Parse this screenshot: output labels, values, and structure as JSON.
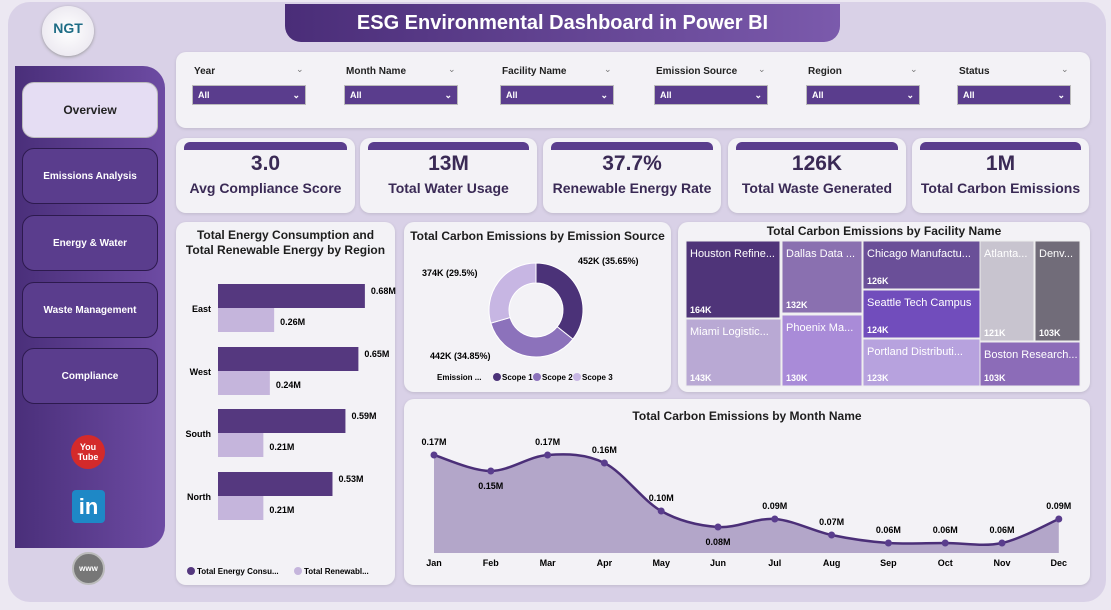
{
  "header": {
    "title": "ESG Environmental Dashboard in Power BI",
    "logo_text": "NGT"
  },
  "sidebar": {
    "items": [
      {
        "label": "Overview",
        "active": true
      },
      {
        "label": "Emissions Analysis"
      },
      {
        "label": "Energy & Water"
      },
      {
        "label": "Waste Management"
      },
      {
        "label": "Compliance"
      }
    ],
    "social": [
      "youtube-icon",
      "linkedin-icon",
      "website-icon"
    ]
  },
  "filters": [
    {
      "label": "Year",
      "value": "All"
    },
    {
      "label": "Month Name",
      "value": "All"
    },
    {
      "label": "Facility Name",
      "value": "All"
    },
    {
      "label": "Emission Source",
      "value": "All"
    },
    {
      "label": "Region",
      "value": "All"
    },
    {
      "label": "Status",
      "value": "All"
    }
  ],
  "kpis": [
    {
      "value": "3.0",
      "label": "Avg Compliance Score"
    },
    {
      "value": "13M",
      "label": "Total Water Usage"
    },
    {
      "value": "37.7%",
      "label": "Renewable Energy Rate"
    },
    {
      "value": "126K",
      "label": "Total Waste Generated"
    },
    {
      "value": "1M",
      "label": "Total Carbon Emissions"
    }
  ],
  "colors": {
    "primary": "#5a3d8d",
    "dark": "#4b3278",
    "light": "#c7b6e3"
  },
  "chart_data": [
    {
      "type": "bar",
      "orientation": "horizontal",
      "title": "Total Energy Consumption and Total Renewable Energy by Region",
      "categories": [
        "East",
        "West",
        "South",
        "North"
      ],
      "series": [
        {
          "name": "Total Energy Consu...",
          "values": [
            0.68,
            0.65,
            0.59,
            0.53
          ],
          "labels": [
            "0.68M",
            "0.65M",
            "0.59M",
            "0.53M"
          ],
          "color": "#55387f"
        },
        {
          "name": "Total Renewabl...",
          "values": [
            0.26,
            0.24,
            0.21,
            0.21
          ],
          "labels": [
            "0.26M",
            "0.24M",
            "0.21M",
            "0.21M"
          ],
          "color": "#c5b5dc"
        }
      ]
    },
    {
      "type": "pie",
      "title": "Total Carbon Emissions by Emission Source",
      "legend_title": "Emission ...",
      "slices": [
        {
          "name": "Scope 1",
          "value": 452,
          "label": "452K (35.65%)",
          "color": "#4b3278"
        },
        {
          "name": "Scope 2",
          "value": 442,
          "label": "442K (34.85%)",
          "color": "#8c72bb"
        },
        {
          "name": "Scope 3",
          "value": 374,
          "label": "374K (29.5%)",
          "color": "#c7b6e3"
        }
      ]
    },
    {
      "type": "treemap",
      "title": "Total Carbon Emissions by Facility Name",
      "items": [
        {
          "name": "Houston Refine...",
          "value": "164K",
          "color": "#4f3479"
        },
        {
          "name": "Miami Logistic...",
          "value": "143K",
          "color": "#b9a9d4"
        },
        {
          "name": "Dallas Data ...",
          "value": "132K",
          "color": "#8a70b0"
        },
        {
          "name": "Phoenix Ma...",
          "value": "130K",
          "color": "#a98bd8"
        },
        {
          "name": "Chicago Manufactu...",
          "value": "126K",
          "color": "#6a4f98"
        },
        {
          "name": "Seattle Tech Campus",
          "value": "124K",
          "color": "#714dbc"
        },
        {
          "name": "Portland Distributi...",
          "value": "123K",
          "color": "#b7a2de"
        },
        {
          "name": "Atlanta...",
          "value": "121K",
          "color": "#c8c4cf"
        },
        {
          "name": "Denv...",
          "value": "103K",
          "color": "#716c79"
        },
        {
          "name": "Boston Research...",
          "value": "103K",
          "color": "#8c6cb8"
        }
      ]
    },
    {
      "type": "area",
      "title": "Total Carbon Emissions by Month Name",
      "categories": [
        "Jan",
        "Feb",
        "Mar",
        "Apr",
        "May",
        "Jun",
        "Jul",
        "Aug",
        "Sep",
        "Oct",
        "Nov",
        "Dec"
      ],
      "values": [
        0.17,
        0.15,
        0.17,
        0.16,
        0.1,
        0.08,
        0.09,
        0.07,
        0.06,
        0.06,
        0.06,
        0.09
      ],
      "labels": [
        "0.17M",
        "0.15M",
        "0.17M",
        "0.16M",
        "0.10M",
        "0.08M",
        "0.09M",
        "0.07M",
        "0.06M",
        "0.06M",
        "0.06M",
        "0.09M"
      ]
    }
  ]
}
